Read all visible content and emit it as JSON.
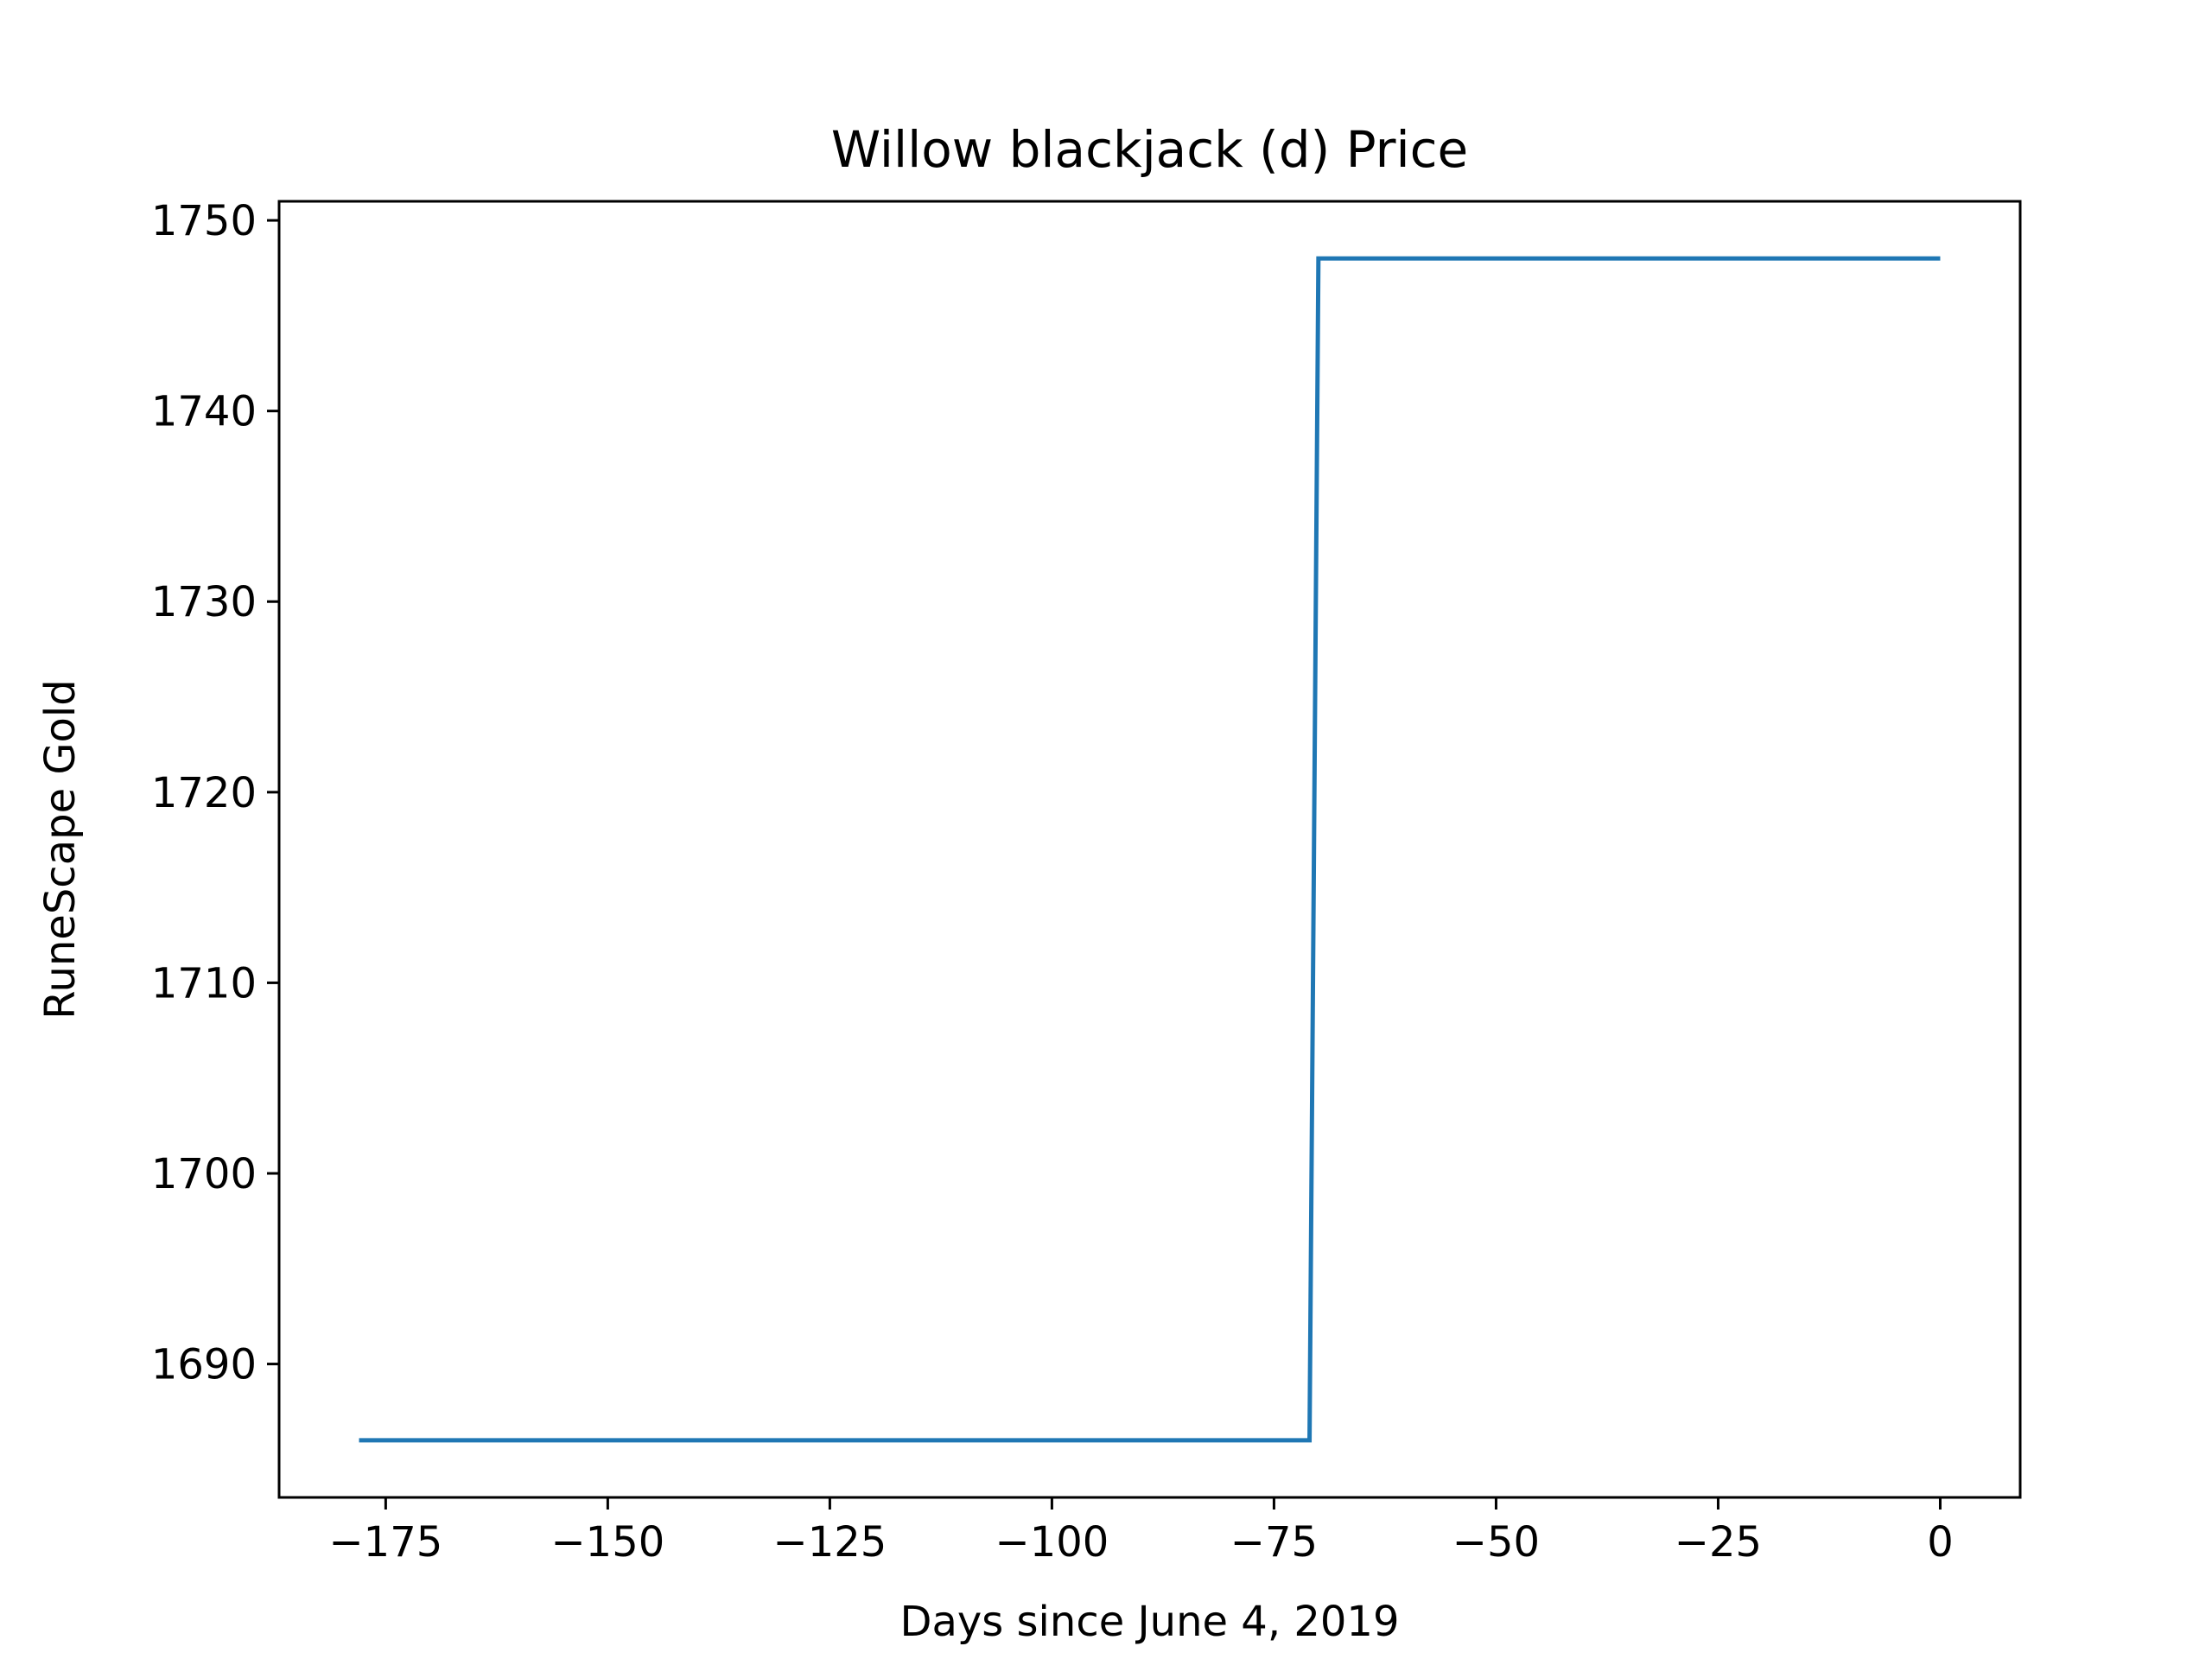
{
  "chart_data": {
    "type": "line",
    "title": "Willow blackjack (d) Price",
    "xlabel": "Days since June 4, 2019",
    "ylabel": "RuneScape Gold",
    "xlim": [
      -187,
      9
    ],
    "ylim": [
      1683,
      1751
    ],
    "xticks": [
      -175,
      -150,
      -125,
      -100,
      -75,
      -50,
      -25,
      0
    ],
    "xtick_labels": [
      "−175",
      "−150",
      "−125",
      "−100",
      "−75",
      "−50",
      "−25",
      "0"
    ],
    "yticks": [
      1690,
      1700,
      1710,
      1720,
      1730,
      1740,
      1750
    ],
    "ytick_labels": [
      "1690",
      "1700",
      "1710",
      "1720",
      "1730",
      "1740",
      "1750"
    ],
    "grid": false,
    "series": [
      {
        "color": "#1f77b4",
        "x": [
          -178,
          -71,
          -70,
          0
        ],
        "y": [
          1686,
          1686,
          1748,
          1748
        ]
      }
    ]
  }
}
